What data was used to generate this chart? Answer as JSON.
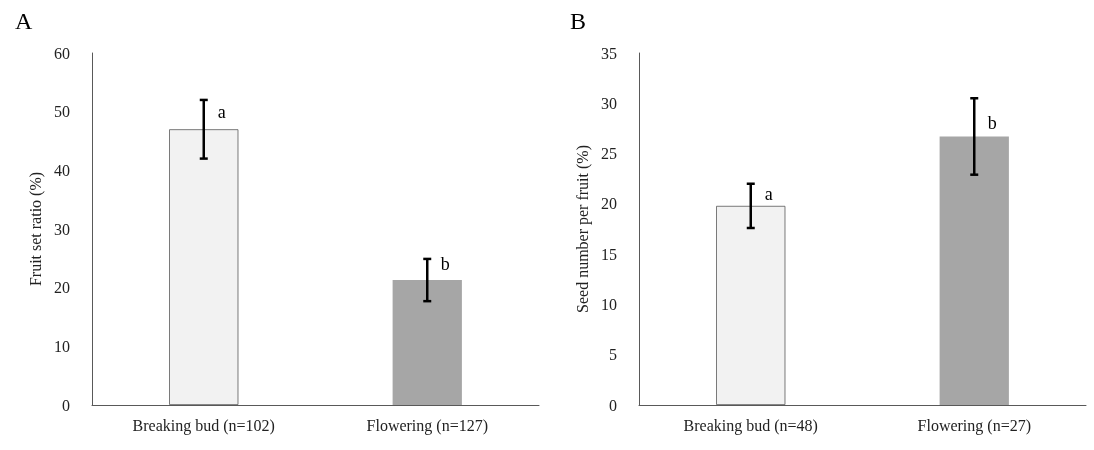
{
  "chart_data": [
    {
      "type": "bar",
      "title": "A",
      "ylabel": "Fruit set ratio (%)",
      "categories": [
        "Breaking bud (n=102)",
        "Flowering (n=127)"
      ],
      "values": [
        47,
        21.3
      ],
      "colors": [
        "#f2f2f2",
        "#a6a6a6"
      ],
      "errors": [
        5,
        3.6
      ],
      "ylim": [
        0,
        60
      ],
      "yticks": [
        0,
        10,
        20,
        30,
        40,
        50,
        60
      ],
      "grid": false,
      "annotations": [
        {
          "text": "a",
          "x": "Breaking bud (n=102)",
          "y": 50
        },
        {
          "text": "b",
          "x": "Flowering (n=127)",
          "y": 24
        }
      ]
    },
    {
      "type": "bar",
      "title": "B",
      "ylabel": "Seed number per fruit (%)",
      "categories": [
        "Breaking bud (n=48)",
        "Flowering (n=27)"
      ],
      "values": [
        19.8,
        26.7
      ],
      "colors": [
        "#f2f2f2",
        "#a6a6a6"
      ],
      "errors": [
        2.2,
        3.8
      ],
      "ylim": [
        0,
        35
      ],
      "yticks": [
        0,
        5,
        10,
        15,
        20,
        25,
        30,
        35
      ],
      "grid": false,
      "annotations": [
        {
          "text": "a",
          "x": "Breaking bud (n=48)",
          "y": 21
        },
        {
          "text": "b",
          "x": "Flowering (n=27)",
          "y": 28
        }
      ]
    }
  ]
}
